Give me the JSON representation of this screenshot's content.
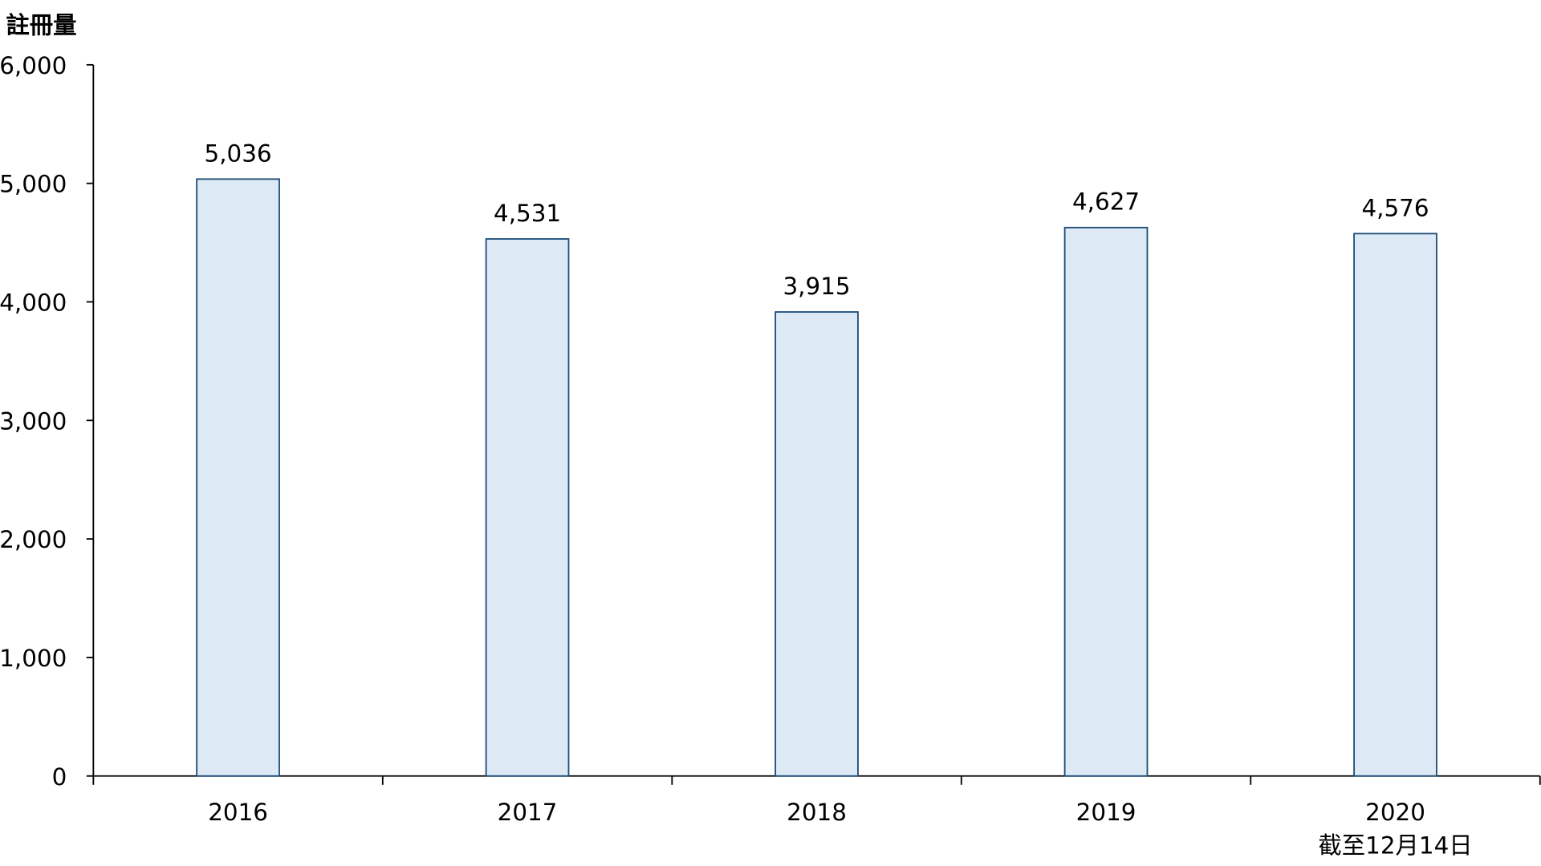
{
  "chart_data": {
    "type": "bar",
    "title": "",
    "ylabel": "註冊量",
    "xlabel": "",
    "categories": [
      "2016",
      "2017",
      "2018",
      "2019",
      "2020"
    ],
    "category_sublabels": [
      "",
      "",
      "",
      "",
      "截至12月14日"
    ],
    "values": [
      5036,
      4531,
      3915,
      4627,
      4576
    ],
    "data_labels": [
      "5,036",
      "4,531",
      "3,915",
      "4,627",
      "4,576"
    ],
    "ylim": [
      0,
      6000
    ],
    "yticks": [
      0,
      1000,
      2000,
      3000,
      4000,
      5000,
      6000
    ],
    "ytick_labels": [
      "0",
      "1,000",
      "2,000",
      "3,000",
      "4,000",
      "5,000",
      "6,000"
    ],
    "grid": false,
    "colors": {
      "bar_fill": "#dde9f5",
      "bar_stroke": "#1f4e79",
      "axis": "#000000"
    }
  }
}
